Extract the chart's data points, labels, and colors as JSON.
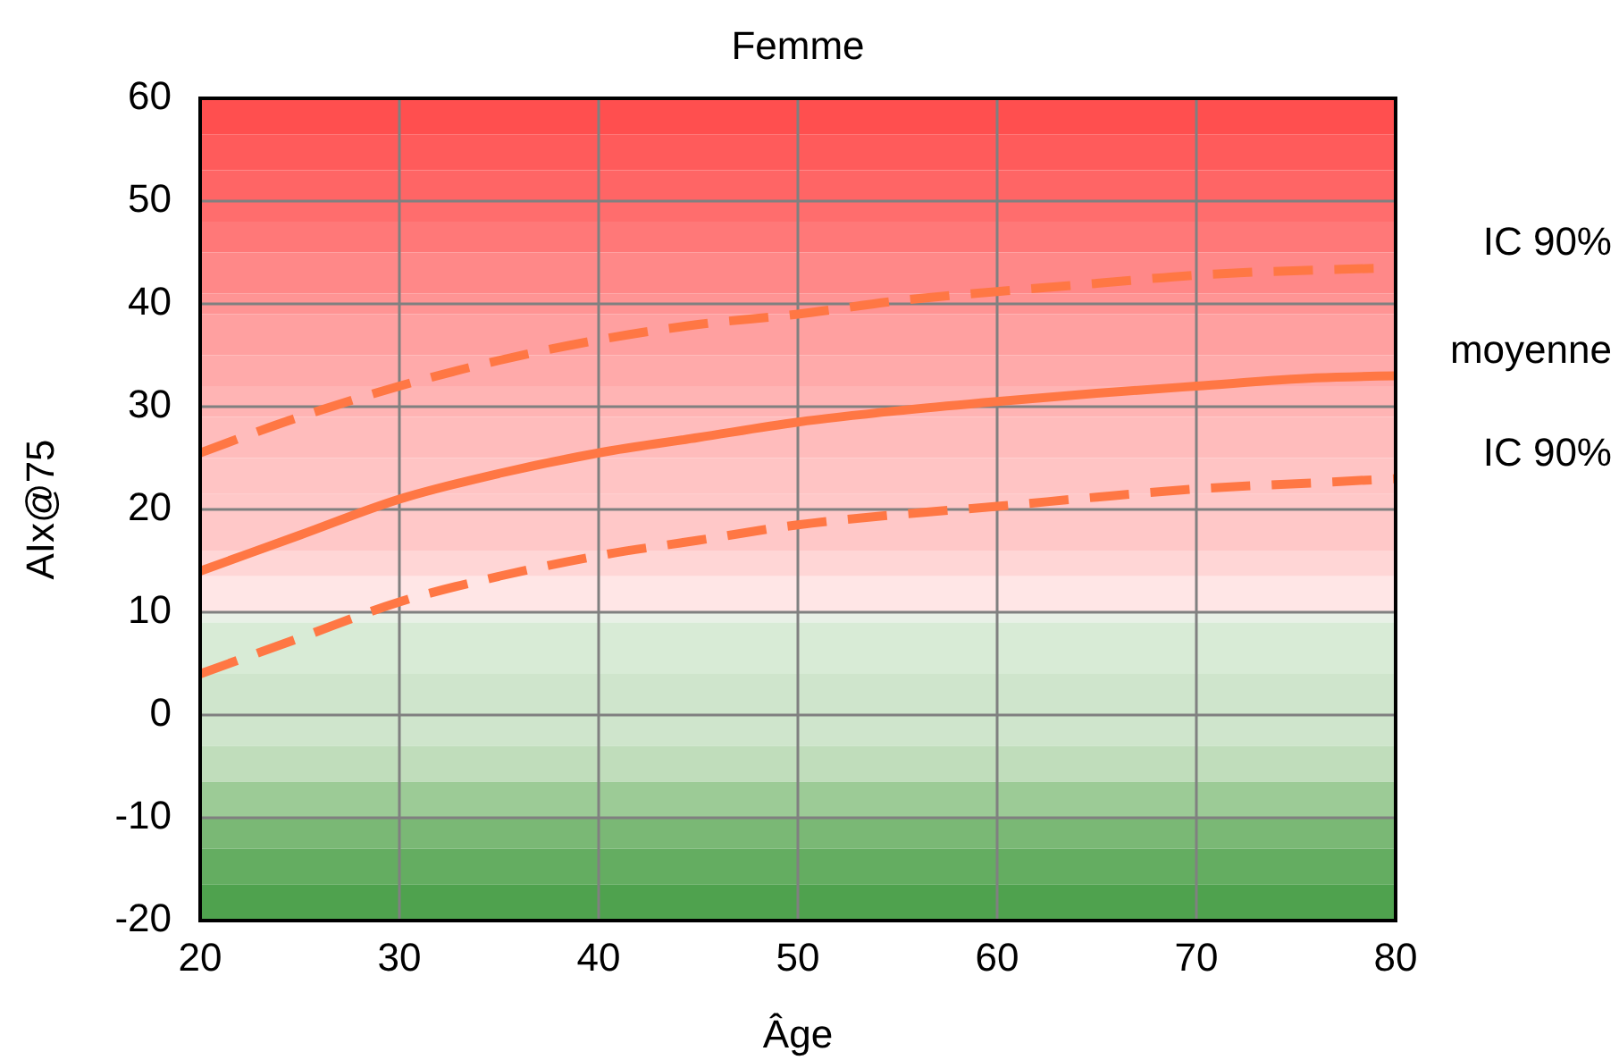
{
  "chart_data": {
    "type": "line",
    "title": "Femme",
    "xlabel": "Âge",
    "ylabel": "AIx@75",
    "x": [
      20,
      25,
      30,
      35,
      40,
      45,
      50,
      55,
      60,
      65,
      70,
      76,
      80
    ],
    "xlim": [
      20,
      80
    ],
    "xticks": [
      20,
      30,
      40,
      50,
      60,
      70,
      80
    ],
    "ylim": [
      -20,
      60
    ],
    "yticks": [
      -20,
      -10,
      0,
      10,
      20,
      30,
      40,
      50,
      60
    ],
    "grid": true,
    "series": [
      {
        "name": "IC 90%",
        "color": "#ff7744",
        "line_style": "dashed",
        "values": [
          25.5,
          29,
          32,
          34.5,
          36.5,
          38,
          39,
          40.3,
          41.2,
          42,
          42.8,
          43.3,
          43.5
        ]
      },
      {
        "name": "moyenne",
        "color": "#ff7744",
        "line_style": "solid",
        "values": [
          14,
          17.5,
          21,
          23.5,
          25.5,
          27,
          28.5,
          29.6,
          30.5,
          31.3,
          32,
          32.8,
          33
        ]
      },
      {
        "name": "IC 90%",
        "color": "#ff7744",
        "line_style": "dashed",
        "values": [
          4,
          7.5,
          11,
          13.5,
          15.5,
          17,
          18.5,
          19.5,
          20.3,
          21.2,
          22,
          22.6,
          23
        ]
      }
    ],
    "bands": [
      {
        "axis": "y",
        "from": 56.5,
        "to": 60,
        "color": "#ff4f4f"
      },
      {
        "axis": "y",
        "from": 53,
        "to": 56.5,
        "color": "#ff5b5b"
      },
      {
        "axis": "y",
        "from": 50,
        "to": 53,
        "color": "#ff6565"
      },
      {
        "axis": "y",
        "from": 48,
        "to": 50,
        "color": "#ff6d6d"
      },
      {
        "axis": "y",
        "from": 45,
        "to": 48,
        "color": "#ff7878"
      },
      {
        "axis": "y",
        "from": 41,
        "to": 45,
        "color": "#ff8888"
      },
      {
        "axis": "y",
        "from": 39,
        "to": 41,
        "color": "#ff9494"
      },
      {
        "axis": "y",
        "from": 35,
        "to": 39,
        "color": "#ffa0a0"
      },
      {
        "axis": "y",
        "from": 32,
        "to": 35,
        "color": "#ffaaaa"
      },
      {
        "axis": "y",
        "from": 29,
        "to": 32,
        "color": "#ffb4b4"
      },
      {
        "axis": "y",
        "from": 25,
        "to": 29,
        "color": "#ffbcbc"
      },
      {
        "axis": "y",
        "from": 21.5,
        "to": 25,
        "color": "#ffc4c4"
      },
      {
        "axis": "y",
        "from": 16,
        "to": 21.5,
        "color": "#ffc8c8"
      },
      {
        "axis": "y",
        "from": 13.5,
        "to": 16,
        "color": "#ffd6d6"
      },
      {
        "axis": "y",
        "from": 10,
        "to": 13.5,
        "color": "#ffe6e6"
      },
      {
        "axis": "y",
        "from": 9,
        "to": 10,
        "color": "#e8f0e6"
      },
      {
        "axis": "y",
        "from": 4,
        "to": 9,
        "color": "#d8ebd6"
      },
      {
        "axis": "y",
        "from": -3,
        "to": 4,
        "color": "#cfe5cc"
      },
      {
        "axis": "y",
        "from": -6.5,
        "to": -3,
        "color": "#c0ddbb"
      },
      {
        "axis": "y",
        "from": -10,
        "to": -6.5,
        "color": "#9ccb96"
      },
      {
        "axis": "y",
        "from": -13,
        "to": -10,
        "color": "#7ab875"
      },
      {
        "axis": "y",
        "from": -16.5,
        "to": -13,
        "color": "#64ad61"
      },
      {
        "axis": "y",
        "from": -20,
        "to": -16.5,
        "color": "#4fa24e"
      }
    ]
  }
}
